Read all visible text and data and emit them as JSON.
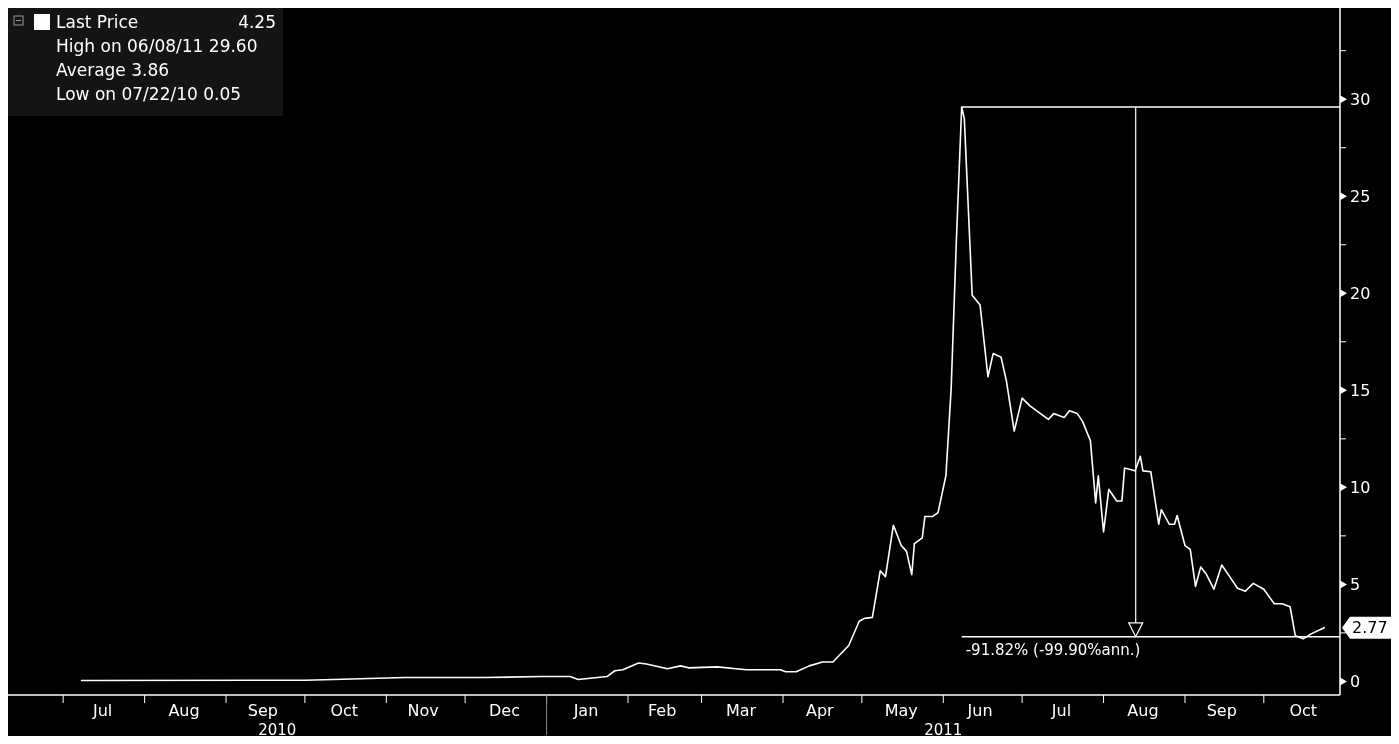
{
  "chart_data": {
    "type": "line",
    "xlim": [
      "2010-06-10",
      "2011-10-30"
    ],
    "ylim": [
      -0.7,
      34.7
    ],
    "xticks": [
      {
        "value": "2010-07-01",
        "label": null
      },
      {
        "value": "2010-07-16",
        "label": "Jul"
      },
      {
        "value": "2010-08-01",
        "label": null
      },
      {
        "value": "2010-08-16",
        "label": "Aug"
      },
      {
        "value": "2010-09-01",
        "label": null
      },
      {
        "value": "2010-09-15",
        "label": "Sep"
      },
      {
        "value": "2010-10-01",
        "label": null
      },
      {
        "value": "2010-10-16",
        "label": "Oct"
      },
      {
        "value": "2010-11-01",
        "label": null
      },
      {
        "value": "2010-11-15",
        "label": "Nov"
      },
      {
        "value": "2010-12-01",
        "label": null
      },
      {
        "value": "2010-12-16",
        "label": "Dec"
      },
      {
        "value": "2011-01-01",
        "label": null
      },
      {
        "value": "2011-01-16",
        "label": "Jan"
      },
      {
        "value": "2011-02-01",
        "label": null
      },
      {
        "value": "2011-02-14",
        "label": "Feb"
      },
      {
        "value": "2011-03-01",
        "label": null
      },
      {
        "value": "2011-03-16",
        "label": "Mar"
      },
      {
        "value": "2011-04-01",
        "label": null
      },
      {
        "value": "2011-04-15",
        "label": "Apr"
      },
      {
        "value": "2011-05-01",
        "label": null
      },
      {
        "value": "2011-05-16",
        "label": "May"
      },
      {
        "value": "2011-06-01",
        "label": null
      },
      {
        "value": "2011-06-15",
        "label": "Jun"
      },
      {
        "value": "2011-07-01",
        "label": null
      },
      {
        "value": "2011-07-16",
        "label": "Jul"
      },
      {
        "value": "2011-08-01",
        "label": null
      },
      {
        "value": "2011-08-16",
        "label": "Aug"
      },
      {
        "value": "2011-09-01",
        "label": null
      },
      {
        "value": "2011-09-15",
        "label": "Sep"
      },
      {
        "value": "2011-10-01",
        "label": null
      },
      {
        "value": "2011-10-16",
        "label": "Oct"
      }
    ],
    "yticks": [
      0,
      {
        "value": 2.5,
        "label": null
      },
      5,
      {
        "value": 7.5,
        "label": null
      },
      10,
      {
        "value": 12.5,
        "label": null
      },
      15,
      {
        "value": 17.5,
        "label": null
      },
      20,
      {
        "value": 22.5,
        "label": null
      },
      25,
      {
        "value": 27.5,
        "label": null
      },
      30,
      {
        "value": 32.5,
        "label": null
      }
    ],
    "series": [
      {
        "name": "Last Price",
        "color": "#ffffff",
        "x": [
          "2010-07-08",
          "2010-10-01",
          "2010-10-12",
          "2010-11-08",
          "2010-12-08",
          "2010-12-30",
          "2011-01-10",
          "2011-01-13",
          "2011-01-24",
          "2011-01-27",
          "2011-01-30",
          "2011-02-05",
          "2011-02-08",
          "2011-02-16",
          "2011-02-21",
          "2011-02-24",
          "2011-03-07",
          "2011-03-18",
          "2011-03-31",
          "2011-04-02",
          "2011-04-06",
          "2011-04-11",
          "2011-04-16",
          "2011-04-20",
          "2011-04-26",
          "2011-04-30",
          "2011-05-02",
          "2011-05-05",
          "2011-05-08",
          "2011-05-10",
          "2011-05-13",
          "2011-05-16",
          "2011-05-18",
          "2011-05-20",
          "2011-05-21",
          "2011-05-24",
          "2011-05-25",
          "2011-05-28",
          "2011-05-30",
          "2011-06-02",
          "2011-06-04",
          "2011-06-06",
          "2011-06-08",
          "2011-06-09",
          "2011-06-12",
          "2011-06-15",
          "2011-06-18",
          "2011-06-20",
          "2011-06-23",
          "2011-06-25",
          "2011-06-28",
          "2011-07-01",
          "2011-07-04",
          "2011-07-11",
          "2011-07-13",
          "2011-07-17",
          "2011-07-19",
          "2011-07-22",
          "2011-07-24",
          "2011-07-27",
          "2011-07-29",
          "2011-07-30",
          "2011-08-01",
          "2011-08-03",
          "2011-08-06",
          "2011-08-08",
          "2011-08-09",
          "2011-08-13",
          "2011-08-15",
          "2011-08-16",
          "2011-08-19",
          "2011-08-22",
          "2011-08-23",
          "2011-08-26",
          "2011-08-28",
          "2011-08-29",
          "2011-09-01",
          "2011-09-03",
          "2011-09-05",
          "2011-09-07",
          "2011-09-09",
          "2011-09-12",
          "2011-09-15",
          "2011-09-18",
          "2011-09-21",
          "2011-09-24",
          "2011-09-27",
          "2011-10-01",
          "2011-10-05",
          "2011-10-08",
          "2011-10-11",
          "2011-10-13",
          "2011-10-16",
          "2011-10-19",
          "2011-10-24"
        ],
        "values": [
          0.05,
          0.06,
          0.1,
          0.2,
          0.2,
          0.25,
          0.25,
          0.1,
          0.25,
          0.55,
          0.6,
          0.95,
          0.9,
          0.65,
          0.8,
          0.7,
          0.75,
          0.6,
          0.6,
          0.5,
          0.5,
          0.8,
          1.0,
          1.0,
          1.85,
          3.1,
          3.25,
          3.3,
          5.7,
          5.4,
          8.05,
          7.0,
          6.7,
          5.5,
          7.1,
          7.4,
          8.5,
          8.5,
          8.7,
          10.6,
          15.1,
          22.8,
          29.6,
          29.0,
          19.9,
          19.4,
          15.7,
          16.9,
          16.7,
          15.5,
          12.9,
          14.6,
          14.2,
          13.5,
          13.8,
          13.6,
          13.95,
          13.8,
          13.4,
          12.4,
          9.2,
          10.6,
          7.7,
          9.9,
          9.3,
          9.3,
          11.0,
          10.85,
          11.6,
          10.85,
          10.8,
          8.1,
          8.85,
          8.1,
          8.1,
          8.55,
          7.0,
          6.8,
          4.9,
          5.9,
          5.55,
          4.75,
          6.0,
          5.4,
          4.8,
          4.65,
          5.05,
          4.75,
          4.0,
          4.0,
          3.85,
          2.35,
          2.2,
          2.45,
          2.77
        ]
      }
    ],
    "ref_lines": [
      {
        "axis": "y",
        "value": 29.6,
        "label": null,
        "color": "#ffffff"
      },
      {
        "axis": "y",
        "value": 2.3,
        "label": "-91.82% (-99.90%ann.)",
        "color": "#ffffff"
      }
    ],
    "annotations": [
      "4.25",
      "High on 06/08/11 29.60",
      "Average 3.86",
      "Low on 07/22/10 0.05",
      {
        "text": "2.77",
        "x": "2011-10-24",
        "y": 2.77
      },
      "2010",
      "2011"
    ],
    "legend": "top left",
    "grid": false,
    "marker": "none",
    "line_style": "solid"
  }
}
